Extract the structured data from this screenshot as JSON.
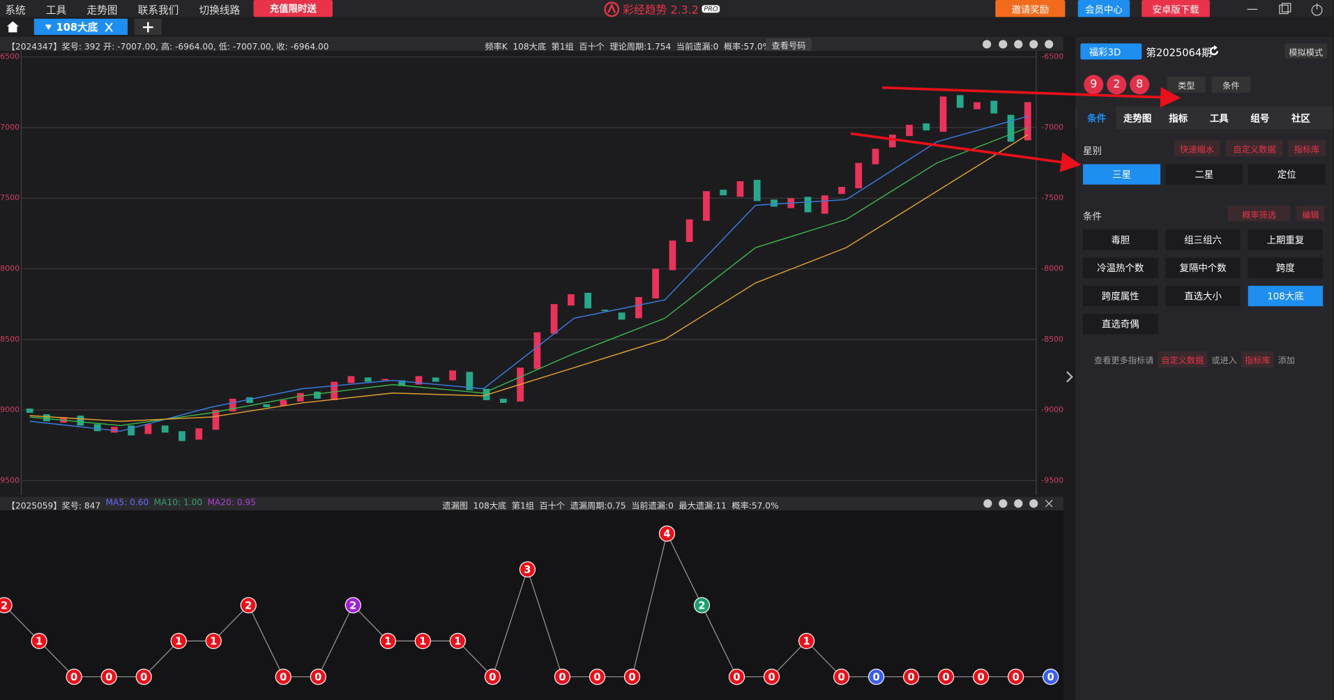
{
  "menu": [
    "系统",
    "工具",
    "走势图",
    "联系我们",
    "切换线路"
  ],
  "promo": "充值限时送",
  "app_title": "彩经趋势 2.3.2",
  "badge": "PRO",
  "top_buttons": [
    "邀请奖励",
    "会员中心",
    "安卓版下载"
  ],
  "tab": "108大底",
  "upper_header": {
    "left": "【2024347】奖号: 392  开: -7007.00, 高: -6964.00, 低: -7007.00, 收: -6964.00",
    "mid": "频率K  108大底  第1组  百十个  理论周期:1.754  当前遗漏:0  概率:57.0%",
    "button": "查看号码"
  },
  "lower_header": {
    "left": "【2025059】奖号: 847",
    "ma": [
      {
        "label": "MA5: 0.60",
        "color": "#6a6aff"
      },
      {
        "label": "MA10: 1.00",
        "color": "#3aa070"
      },
      {
        "label": "MA20: 0.95",
        "color": "#b040d0"
      }
    ],
    "mid": "遗漏图  108大底  第1组  百十个  遗漏周期:0.75  当前遗漏:0  最大遗漏:11  概率:57.0%"
  },
  "chart_data": [
    {
      "type": "candlestick",
      "ylim": [
        -9500,
        -6500
      ],
      "yticks": [
        -6500,
        -7000,
        -7500,
        -8000,
        -8500,
        -9000,
        -9500
      ],
      "grid": true,
      "up_color": "#e8335a",
      "down_color": "#27a88a",
      "open": [
        -8990,
        -9030,
        -9090,
        -9040,
        -9100,
        -9160,
        -9110,
        -9170,
        -9110,
        -9150,
        -9210,
        -9140,
        -9010,
        -8910,
        -8960,
        -8970,
        -8940,
        -8870,
        -8930,
        -8810,
        -8770,
        -8790,
        -8790,
        -8820,
        -8770,
        -8790,
        -8730,
        -8850,
        -8920,
        -8940,
        -8710,
        -8460,
        -8260,
        -8170,
        -8290,
        -8310,
        -8350,
        -8210,
        -8010,
        -7810,
        -7660,
        -7440,
        -7490,
        -7370,
        -7510,
        -7570,
        -7490,
        -7610,
        -7470,
        -7430,
        -7260,
        -7140,
        -7060,
        -6970,
        -7030,
        -6770,
        -6870,
        -6810,
        -6910,
        -7090
      ],
      "close": [
        -9020,
        -9080,
        -9050,
        -9110,
        -9150,
        -9120,
        -9180,
        -9100,
        -9160,
        -9220,
        -9130,
        -9000,
        -8920,
        -8950,
        -8980,
        -8930,
        -8880,
        -8920,
        -8800,
        -8760,
        -8800,
        -8780,
        -8830,
        -8760,
        -8800,
        -8720,
        -8860,
        -8930,
        -8950,
        -8700,
        -8450,
        -8250,
        -8180,
        -8280,
        -8300,
        -8360,
        -8200,
        -8000,
        -7800,
        -7650,
        -7450,
        -7480,
        -7380,
        -7520,
        -7560,
        -7500,
        -7600,
        -7480,
        -7420,
        -7250,
        -7150,
        -7050,
        -6980,
        -7020,
        -6780,
        -6860,
        -6820,
        -6900,
        -7100,
        -6820
      ],
      "ma_series": [
        {
          "color": "#3a7be0",
          "values": [
            -9080,
            -9150,
            -8980,
            -8850,
            -8790,
            -8850,
            -8350,
            -8220,
            -7550,
            -7510,
            -7100,
            -6920
          ]
        },
        {
          "color": "#3cb54a",
          "values": [
            -9050,
            -9110,
            -9020,
            -8900,
            -8820,
            -8880,
            -8600,
            -8350,
            -7850,
            -7650,
            -7250,
            -7000
          ]
        },
        {
          "color": "#e0a030",
          "values": [
            -9040,
            -9080,
            -9050,
            -8950,
            -8880,
            -8900,
            -8700,
            -8500,
            -8100,
            -7850,
            -7450,
            -7050
          ]
        }
      ]
    },
    {
      "type": "line",
      "ylim": [
        -0.65,
        4.65
      ],
      "line_color": "#9a9a9a",
      "values": [
        2,
        1,
        0,
        0,
        0,
        1,
        1,
        2,
        0,
        0,
        2,
        1,
        1,
        1,
        0,
        3,
        0,
        0,
        0,
        4,
        2,
        0,
        0,
        1,
        0,
        0,
        0,
        0,
        0,
        0,
        0
      ],
      "point_colors": [
        "#e8101a",
        "#e8101a",
        "#e8101a",
        "#e8101a",
        "#e8101a",
        "#e8101a",
        "#e8101a",
        "#e8101a",
        "#e8101a",
        "#e8101a",
        "#a020d0",
        "#e8101a",
        "#e8101a",
        "#e8101a",
        "#e8101a",
        "#e8101a",
        "#e8101a",
        "#e8101a",
        "#e8101a",
        "#e8101a",
        "#1e9e6a",
        "#e8101a",
        "#e8101a",
        "#e8101a",
        "#e8101a",
        "#3a5ef0",
        "#e8101a",
        "#e8101a",
        "#e8101a",
        "#e8101a",
        "#3a5ef0"
      ]
    }
  ],
  "sidebar": {
    "lottery": "福彩3D",
    "period": "第2025064期",
    "mode": "模拟模式",
    "balls": [
      "9",
      "2",
      "8"
    ],
    "dropdowns": [
      "类型",
      "条件"
    ],
    "tabs": [
      "条件",
      "走势图",
      "指标",
      "工具",
      "组号",
      "社区"
    ],
    "star_label": "星别",
    "links": [
      "快速缩水",
      "自定义数据",
      "指标库"
    ],
    "stars": [
      "三星",
      "二星",
      "定位"
    ],
    "cond_label": "条件",
    "filter": "概率筛选",
    "edit": "编辑",
    "conditions": [
      "毒胆",
      "组三组六",
      "上期重复",
      "冷温热个数",
      "复隔中个数",
      "跨度",
      "跨度属性",
      "直选大小",
      "108大底",
      "直选奇偶"
    ],
    "footer": [
      "查看更多指标请",
      "自定义数据",
      "或进入",
      "指标库",
      "添加"
    ]
  }
}
